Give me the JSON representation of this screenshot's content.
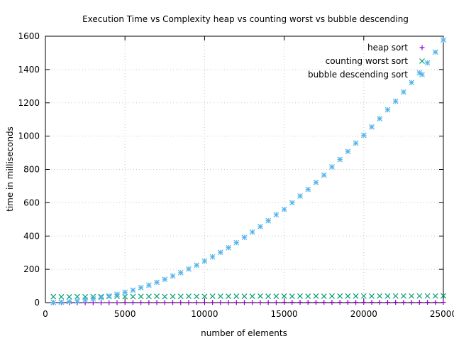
{
  "chart_data": {
    "type": "scatter",
    "title": "Execution Time vs Complexity heap vs counting worst vs bubble descending",
    "xlabel": "number of elements",
    "ylabel": "time in milliseconds",
    "xlim": [
      0,
      25000
    ],
    "ylim": [
      0,
      1600
    ],
    "xticks": [
      0,
      5000,
      10000,
      15000,
      20000,
      25000
    ],
    "yticks": [
      0,
      200,
      400,
      600,
      800,
      1000,
      1200,
      1400,
      1600
    ],
    "grid": true,
    "legend_position": "top-right",
    "series": [
      {
        "name": "heap sort",
        "marker": "plus",
        "color": "#9400d3",
        "x": [
          500,
          1000,
          1500,
          2000,
          2500,
          3000,
          3500,
          4000,
          4500,
          5000,
          5500,
          6000,
          6500,
          7000,
          7500,
          8000,
          8500,
          9000,
          9500,
          10000,
          10500,
          11000,
          11500,
          12000,
          12500,
          13000,
          13500,
          14000,
          14500,
          15000,
          15500,
          16000,
          16500,
          17000,
          17500,
          18000,
          18500,
          19000,
          19500,
          20000,
          20500,
          21000,
          21500,
          22000,
          22500,
          23000,
          23500,
          24000,
          24500,
          25000
        ],
        "y": [
          0,
          0,
          0,
          0,
          0,
          0,
          0,
          0,
          0,
          1,
          1,
          1,
          1,
          1,
          1,
          1,
          1,
          1,
          1,
          1,
          1,
          1,
          1,
          1,
          1,
          1,
          1,
          1,
          1,
          2,
          2,
          2,
          2,
          2,
          2,
          2,
          2,
          2,
          2,
          2,
          2,
          2,
          2,
          2,
          2,
          2,
          2,
          2,
          2,
          2
        ]
      },
      {
        "name": "counting worst sort",
        "marker": "cross",
        "color": "#009e73",
        "x": [
          500,
          1000,
          1500,
          2000,
          2500,
          3000,
          3500,
          4000,
          4500,
          5000,
          5500,
          6000,
          6500,
          7000,
          7500,
          8000,
          8500,
          9000,
          9500,
          10000,
          10500,
          11000,
          11500,
          12000,
          12500,
          13000,
          13500,
          14000,
          14500,
          15000,
          15500,
          16000,
          16500,
          17000,
          17500,
          18000,
          18500,
          19000,
          19500,
          20000,
          20500,
          21000,
          21500,
          22000,
          22500,
          23000,
          23500,
          24000,
          24500,
          25000
        ],
        "y": [
          36,
          35,
          35,
          36,
          35,
          36,
          36,
          37,
          38,
          36,
          36,
          37,
          37,
          38,
          36,
          37,
          37,
          38,
          37,
          37,
          38,
          38,
          38,
          38,
          38,
          38,
          39,
          38,
          38,
          39,
          38,
          39,
          38,
          39,
          38,
          39,
          39,
          39,
          39,
          40,
          39,
          40,
          39,
          40,
          40,
          40,
          40,
          40,
          40,
          41
        ]
      },
      {
        "name": "bubble descending sort",
        "marker": "star",
        "color": "#56b4e9",
        "x": [
          500,
          1000,
          1500,
          2000,
          2500,
          3000,
          3500,
          4000,
          4500,
          5000,
          5500,
          6000,
          6500,
          7000,
          7500,
          8000,
          8500,
          9000,
          9500,
          10000,
          10500,
          11000,
          11500,
          12000,
          12500,
          13000,
          13500,
          14000,
          14500,
          15000,
          15500,
          16000,
          16500,
          17000,
          17500,
          18000,
          18500,
          19000,
          19500,
          20000,
          20500,
          21000,
          21500,
          22000,
          22500,
          23000,
          23500,
          24000,
          24500,
          25000
        ],
        "y": [
          1,
          3,
          6,
          10,
          16,
          22,
          30,
          40,
          50,
          62,
          75,
          90,
          105,
          122,
          140,
          160,
          180,
          202,
          225,
          250,
          275,
          302,
          330,
          360,
          392,
          424,
          457,
          492,
          528,
          560,
          600,
          640,
          680,
          722,
          766,
          815,
          860,
          908,
          958,
          1005,
          1055,
          1105,
          1158,
          1210,
          1265,
          1322,
          1380,
          1440,
          1505,
          1578
        ]
      }
    ]
  }
}
